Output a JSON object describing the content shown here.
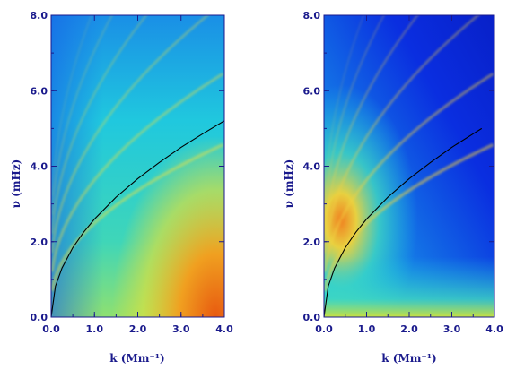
{
  "chart_data": [
    {
      "type": "heatmap",
      "panel": "left",
      "title": "",
      "xlabel": "k (Mm⁻¹)",
      "ylabel": "ν (mHz)",
      "xlim": [
        0.0,
        4.0
      ],
      "ylim": [
        0.0,
        8.0
      ],
      "x_ticks": [
        0.0,
        1.0,
        2.0,
        3.0,
        4.0
      ],
      "x_tick_labels": [
        "0.0",
        "1.0",
        "2.0",
        "3.0",
        "4.0"
      ],
      "y_ticks": [
        0.0,
        2.0,
        4.0,
        6.0,
        8.0
      ],
      "y_tick_labels": [
        "0.0",
        "2.0",
        "4.0",
        "6.0",
        "8.0"
      ],
      "colors": {
        "background": "#1ec8e0",
        "low": "#1560e8",
        "mid": "#e8e040",
        "high": "#e05010"
      },
      "curve": {
        "style": "black line",
        "x": [
          0.0,
          0.1,
          0.25,
          0.5,
          0.75,
          1.0,
          1.5,
          2.0,
          2.5,
          3.0,
          3.5,
          4.0
        ],
        "y": [
          0.0,
          0.82,
          1.3,
          1.84,
          2.25,
          2.6,
          3.18,
          3.67,
          4.1,
          4.5,
          4.86,
          5.2
        ]
      }
    },
    {
      "type": "heatmap",
      "panel": "right",
      "title": "",
      "xlabel": "k (Mm⁻¹)",
      "ylabel": "ν (mHz)",
      "xlim": [
        0.0,
        4.0
      ],
      "ylim": [
        0.0,
        8.0
      ],
      "x_ticks": [
        0.0,
        1.0,
        2.0,
        3.0,
        4.0
      ],
      "x_tick_labels": [
        "0.0",
        "1.0",
        "2.0",
        "3.0",
        "4.0"
      ],
      "y_ticks": [
        0.0,
        2.0,
        4.0,
        6.0,
        8.0
      ],
      "y_tick_labels": [
        "0.0",
        "2.0",
        "4.0",
        "6.0",
        "8.0"
      ],
      "colors": {
        "background": "#0a2ee0",
        "low": "#0a2ee0",
        "mid": "#20d0e0",
        "high": "#e03010"
      },
      "curve": {
        "style": "black line",
        "x": [
          0.0,
          0.1,
          0.25,
          0.5,
          0.75,
          1.0,
          1.5,
          2.0,
          2.5,
          3.0,
          3.5,
          3.7
        ],
        "y": [
          0.0,
          0.82,
          1.3,
          1.84,
          2.25,
          2.6,
          3.18,
          3.67,
          4.1,
          4.5,
          4.86,
          5.0
        ]
      }
    }
  ]
}
